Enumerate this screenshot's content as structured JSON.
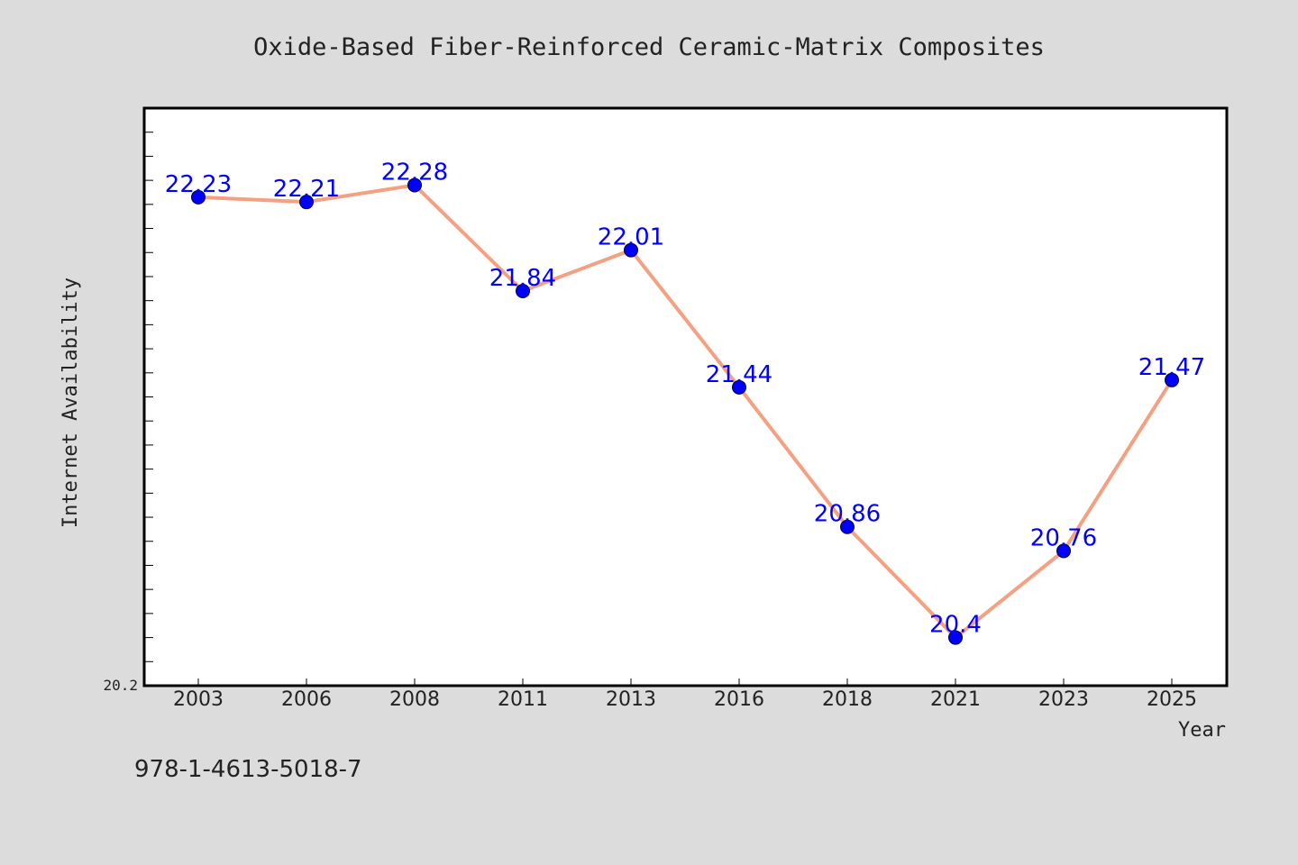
{
  "chart_data": {
    "type": "line",
    "title": "Oxide-Based Fiber-Reinforced Ceramic-Matrix Composites",
    "xlabel": "Year",
    "ylabel": "Internet Availability",
    "categories": [
      "2003",
      "2006",
      "2008",
      "2011",
      "2013",
      "2016",
      "2018",
      "2021",
      "2023",
      "2025"
    ],
    "series": [
      {
        "values": [
          22.23,
          22.21,
          22.28,
          21.84,
          22.01,
          21.44,
          20.86,
          20.4,
          20.76,
          21.47
        ]
      }
    ],
    "data_labels": [
      "22.23",
      "22.21",
      "22.28",
      "21.84",
      "22.01",
      "21.44",
      "20.86",
      "20.4",
      "20.76",
      "21.47"
    ],
    "ylim": [
      20.2,
      22.6
    ],
    "ytick_label": "20.2",
    "grid": false,
    "colors": {
      "line": "#f4a081",
      "marker": "#0000ff",
      "data_label": "#0000ff",
      "background": "#dcdcdc",
      "plot_background": "#ffffff"
    }
  },
  "footer": {
    "isbn": "978-1-4613-5018-7"
  }
}
